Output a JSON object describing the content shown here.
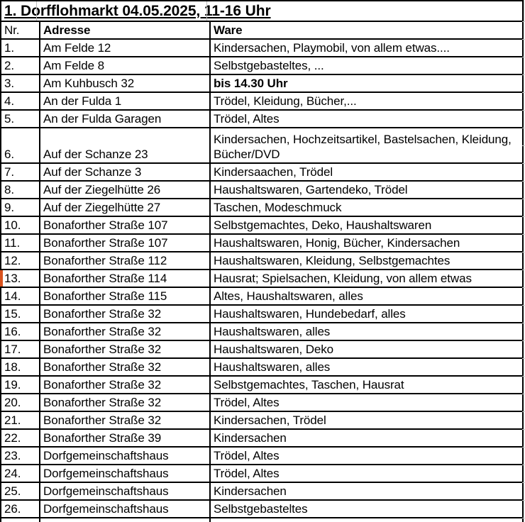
{
  "title": "1. Dorfflohmarkt 04.05.2025, 11-16 Uhr",
  "table": {
    "headers": {
      "nr": "Nr.",
      "adresse": "Adresse",
      "ware": "Ware"
    },
    "rows": [
      {
        "nr": "1.",
        "adresse": "Am Felde 12",
        "ware": "Kindersachen, Playmobil, von allem etwas...."
      },
      {
        "nr": "2.",
        "adresse": "Am Felde 8",
        "ware": "Selbstgebasteltes, ..."
      },
      {
        "nr": "3.",
        "adresse": "Am Kuhbusch 32",
        "ware": "bis 14.30 Uhr",
        "bold_ware": true
      },
      {
        "nr": "4.",
        "adresse": "An der Fulda 1",
        "ware": "Trödel, Kleidung, Bücher,..."
      },
      {
        "nr": "5.",
        "adresse": "An der Fulda Garagen",
        "ware": "Trödel, Altes"
      },
      {
        "nr": "6.",
        "adresse": "Auf der Schanze 23",
        "ware": "Kindersachen, Hochzeitsartikel, Bastelsachen, Kleidung, Bücher/DVD",
        "tall": true
      },
      {
        "nr": "7.",
        "adresse": "Auf der Schanze 3",
        "ware": "Kindersaachen, Trödel"
      },
      {
        "nr": "8.",
        "adresse": "Auf der Ziegelhütte 26",
        "ware": "Haushaltswaren, Gartendeko, Trödel"
      },
      {
        "nr": "9.",
        "adresse": "Auf der Ziegelhütte 27",
        "ware": "Taschen, Modeschmuck"
      },
      {
        "nr": "10.",
        "adresse": "Bonaforther Straße 107",
        "ware": "Selbstgemachtes, Deko, Haushaltswaren"
      },
      {
        "nr": "11.",
        "adresse": "Bonaforther Straße 107",
        "ware": "Haushaltswaren, Honig, Bücher, Kindersachen"
      },
      {
        "nr": "12.",
        "adresse": "Bonaforther Straße 112",
        "ware": "Haushaltswaren, Kleidung, Selbstgemachtes"
      },
      {
        "nr": "13.",
        "adresse": "Bonaforther Straße 114",
        "ware": "Hausrat; Spielsachen, Kleidung, von allem etwas",
        "marker": true
      },
      {
        "nr": "14.",
        "adresse": "Bonaforther Straße 115",
        "ware": "Altes, Haushaltswaren, alles"
      },
      {
        "nr": "15.",
        "adresse": "Bonaforther Straße 32",
        "ware": "Haushaltswaren, Hundebedarf, alles"
      },
      {
        "nr": "16.",
        "adresse": "Bonaforther Straße 32",
        "ware": "Haushaltswaren, alles"
      },
      {
        "nr": "17.",
        "adresse": "Bonaforther Straße 32",
        "ware": "Haushaltswaren, Deko"
      },
      {
        "nr": "18.",
        "adresse": "Bonaforther Straße 32",
        "ware": "Haushaltswaren, alles"
      },
      {
        "nr": "19.",
        "adresse": "Bonaforther Straße 32",
        "ware": "Selbstgemachtes, Taschen, Hausrat"
      },
      {
        "nr": "20.",
        "adresse": "Bonaforther Straße 32",
        "ware": "Trödel, Altes"
      },
      {
        "nr": "21.",
        "adresse": "Bonaforther Straße 32",
        "ware": "Kindersachen, Trödel"
      },
      {
        "nr": "22.",
        "adresse": "Bonaforther Straße 39",
        "ware": "Kindersachen"
      },
      {
        "nr": "23.",
        "adresse": "Dorfgemeinschaftshaus",
        "ware": "Trödel, Altes"
      },
      {
        "nr": "24.",
        "adresse": "Dorfgemeinschaftshaus",
        "ware": "Trödel, Altes"
      },
      {
        "nr": "25.",
        "adresse": "Dorfgemeinschaftshaus",
        "ware": "Kindersachen"
      },
      {
        "nr": "26.",
        "adresse": "Dorfgemeinschaftshaus",
        "ware": "Selbstgebasteltes"
      }
    ],
    "partial_last_row": true
  },
  "colors": {
    "marker": "#d9531e",
    "border": "#000000",
    "gridline": "#bdbdbd"
  }
}
